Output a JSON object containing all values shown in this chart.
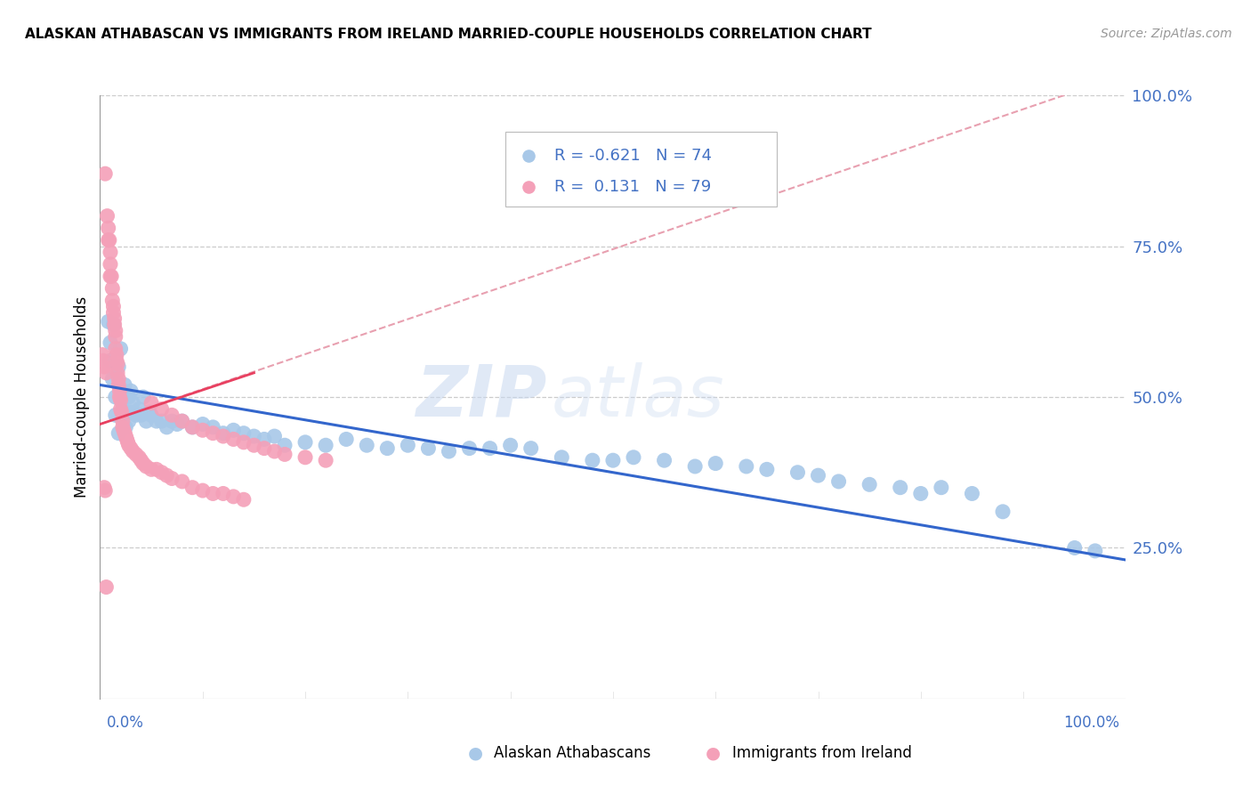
{
  "title": "ALASKAN ATHABASCAN VS IMMIGRANTS FROM IRELAND MARRIED-COUPLE HOUSEHOLDS CORRELATION CHART",
  "source": "Source: ZipAtlas.com",
  "ylabel": "Married-couple Households",
  "legend_blue_r": "-0.621",
  "legend_blue_n": "74",
  "legend_pink_r": "0.131",
  "legend_pink_n": "79",
  "blue_color": "#a8c8e8",
  "pink_color": "#f4a0b8",
  "blue_line_color": "#3366cc",
  "pink_line_color": "#e84060",
  "pink_dashed_color": "#e8a0b0",
  "watermark_zip": "ZIP",
  "watermark_atlas": "atlas",
  "blue_points_x": [
    0.008,
    0.01,
    0.01,
    0.012,
    0.013,
    0.015,
    0.015,
    0.018,
    0.018,
    0.02,
    0.022,
    0.022,
    0.024,
    0.025,
    0.028,
    0.028,
    0.03,
    0.03,
    0.032,
    0.035,
    0.038,
    0.04,
    0.042,
    0.045,
    0.048,
    0.05,
    0.055,
    0.06,
    0.065,
    0.07,
    0.075,
    0.08,
    0.09,
    0.1,
    0.11,
    0.12,
    0.13,
    0.14,
    0.15,
    0.16,
    0.17,
    0.18,
    0.2,
    0.22,
    0.24,
    0.26,
    0.28,
    0.3,
    0.32,
    0.34,
    0.36,
    0.38,
    0.4,
    0.42,
    0.45,
    0.48,
    0.5,
    0.52,
    0.55,
    0.58,
    0.6,
    0.63,
    0.65,
    0.68,
    0.7,
    0.72,
    0.75,
    0.78,
    0.8,
    0.82,
    0.85,
    0.88,
    0.95,
    0.97
  ],
  "blue_points_y": [
    0.625,
    0.59,
    0.56,
    0.53,
    0.62,
    0.5,
    0.47,
    0.55,
    0.44,
    0.58,
    0.51,
    0.48,
    0.52,
    0.45,
    0.5,
    0.46,
    0.51,
    0.475,
    0.49,
    0.47,
    0.48,
    0.47,
    0.5,
    0.46,
    0.475,
    0.47,
    0.46,
    0.46,
    0.45,
    0.46,
    0.455,
    0.46,
    0.45,
    0.455,
    0.45,
    0.44,
    0.445,
    0.44,
    0.435,
    0.43,
    0.435,
    0.42,
    0.425,
    0.42,
    0.43,
    0.42,
    0.415,
    0.42,
    0.415,
    0.41,
    0.415,
    0.415,
    0.42,
    0.415,
    0.4,
    0.395,
    0.395,
    0.4,
    0.395,
    0.385,
    0.39,
    0.385,
    0.38,
    0.375,
    0.37,
    0.36,
    0.355,
    0.35,
    0.34,
    0.35,
    0.34,
    0.31,
    0.25,
    0.245
  ],
  "pink_points_x": [
    0.005,
    0.007,
    0.008,
    0.008,
    0.009,
    0.01,
    0.01,
    0.01,
    0.011,
    0.012,
    0.012,
    0.013,
    0.013,
    0.014,
    0.014,
    0.015,
    0.015,
    0.015,
    0.016,
    0.016,
    0.017,
    0.017,
    0.018,
    0.018,
    0.019,
    0.019,
    0.02,
    0.02,
    0.021,
    0.022,
    0.022,
    0.023,
    0.024,
    0.025,
    0.026,
    0.027,
    0.028,
    0.03,
    0.032,
    0.035,
    0.038,
    0.04,
    0.042,
    0.045,
    0.05,
    0.055,
    0.06,
    0.065,
    0.07,
    0.08,
    0.09,
    0.1,
    0.11,
    0.12,
    0.13,
    0.14,
    0.002,
    0.003,
    0.004,
    0.006,
    0.05,
    0.06,
    0.07,
    0.08,
    0.09,
    0.1,
    0.11,
    0.12,
    0.13,
    0.14,
    0.15,
    0.16,
    0.17,
    0.18,
    0.2,
    0.22,
    0.004,
    0.005,
    0.006
  ],
  "pink_points_y": [
    0.87,
    0.8,
    0.78,
    0.76,
    0.76,
    0.74,
    0.72,
    0.7,
    0.7,
    0.68,
    0.66,
    0.65,
    0.64,
    0.63,
    0.62,
    0.61,
    0.6,
    0.58,
    0.57,
    0.56,
    0.555,
    0.54,
    0.53,
    0.52,
    0.51,
    0.5,
    0.495,
    0.48,
    0.475,
    0.46,
    0.45,
    0.445,
    0.44,
    0.435,
    0.43,
    0.425,
    0.42,
    0.415,
    0.41,
    0.405,
    0.4,
    0.395,
    0.39,
    0.385,
    0.38,
    0.38,
    0.375,
    0.37,
    0.365,
    0.36,
    0.35,
    0.345,
    0.34,
    0.34,
    0.335,
    0.33,
    0.57,
    0.56,
    0.55,
    0.54,
    0.49,
    0.48,
    0.47,
    0.46,
    0.45,
    0.445,
    0.44,
    0.435,
    0.43,
    0.425,
    0.42,
    0.415,
    0.41,
    0.405,
    0.4,
    0.395,
    0.35,
    0.345,
    0.185
  ]
}
